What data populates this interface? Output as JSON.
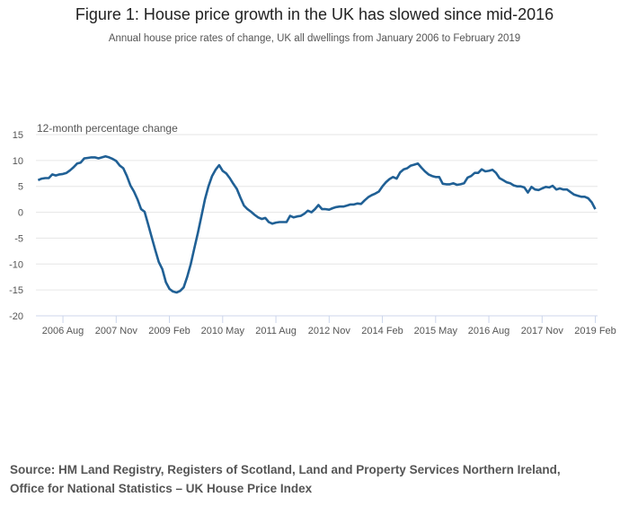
{
  "title": "Figure 1: House price growth in the UK has slowed since mid-2016",
  "subtitle": "Annual house price rates of change, UK all dwellings from January 2006 to February 2019",
  "source_lines": [
    "Source: HM Land Registry, Registers of Scotland, Land and Property Services Northern Ireland,",
    "Office for National Statistics – UK House Price Index"
  ],
  "chart_data": {
    "type": "line",
    "title": "Figure 1: House price growth in the UK has slowed since mid-2016",
    "subtitle": "Annual house price rates of change, UK all dwellings from January 2006 to February 2019",
    "ylabel": "12-month percentage change",
    "xlabel": "",
    "ylim": [
      -20,
      15
    ],
    "yticks": [
      15,
      10,
      5,
      0,
      -5,
      -10,
      -15,
      -20
    ],
    "x_start": "2006-01",
    "x_end": "2019-02",
    "x_frequency": "monthly",
    "xticks": [
      "2006 Aug",
      "2007 Nov",
      "2009 Feb",
      "2010 May",
      "2011 Aug",
      "2012 Nov",
      "2014 Feb",
      "2015 May",
      "2016 Aug",
      "2017 Nov",
      "2019 Feb"
    ],
    "xtick_dates": [
      "2006-08",
      "2007-11",
      "2009-02",
      "2010-05",
      "2011-08",
      "2012-11",
      "2014-02",
      "2015-05",
      "2016-08",
      "2017-11",
      "2019-02"
    ],
    "grid": true,
    "line_color": "#206095",
    "values": [
      6.2,
      6.5,
      6.6,
      6.6,
      7.3,
      7.1,
      7.3,
      7.4,
      7.6,
      8.1,
      8.7,
      9.4,
      9.6,
      10.4,
      10.5,
      10.6,
      10.6,
      10.4,
      10.6,
      10.8,
      10.6,
      10.3,
      9.9,
      9.0,
      8.5,
      7.0,
      5.2,
      4.0,
      2.5,
      0.6,
      0.1,
      -2.3,
      -4.8,
      -7.3,
      -9.6,
      -11.0,
      -13.5,
      -14.8,
      -15.3,
      -15.5,
      -15.2,
      -14.5,
      -12.5,
      -10.0,
      -7.0,
      -4.0,
      -0.8,
      2.5,
      5.0,
      7.0,
      8.2,
      9.1,
      8.0,
      7.5,
      6.6,
      5.5,
      4.5,
      2.8,
      1.3,
      0.6,
      0.1,
      -0.5,
      -1.0,
      -1.3,
      -1.1,
      -1.9,
      -2.2,
      -2.0,
      -1.9,
      -1.9,
      -1.9,
      -0.7,
      -1.0,
      -0.8,
      -0.7,
      -0.3,
      0.3,
      0.0,
      0.6,
      1.4,
      0.6,
      0.6,
      0.5,
      0.8,
      1.0,
      1.1,
      1.1,
      1.3,
      1.5,
      1.5,
      1.7,
      1.6,
      2.3,
      2.9,
      3.3,
      3.6,
      4.0,
      5.0,
      5.8,
      6.4,
      6.8,
      6.5,
      7.7,
      8.3,
      8.5,
      9.0,
      9.2,
      9.4,
      8.6,
      7.9,
      7.3,
      7.0,
      6.8,
      6.8,
      5.5,
      5.4,
      5.4,
      5.6,
      5.3,
      5.4,
      5.6,
      6.7,
      7.0,
      7.6,
      7.6,
      8.3,
      7.9,
      8.0,
      8.2,
      7.6,
      6.6,
      6.2,
      5.8,
      5.6,
      5.2,
      5.0,
      5.0,
      4.8,
      3.8,
      4.9,
      4.4,
      4.3,
      4.6,
      4.9,
      4.8,
      5.1,
      4.4,
      4.6,
      4.4,
      4.4,
      3.9,
      3.4,
      3.2,
      3.0,
      3.0,
      2.7,
      1.9,
      0.6
    ]
  }
}
